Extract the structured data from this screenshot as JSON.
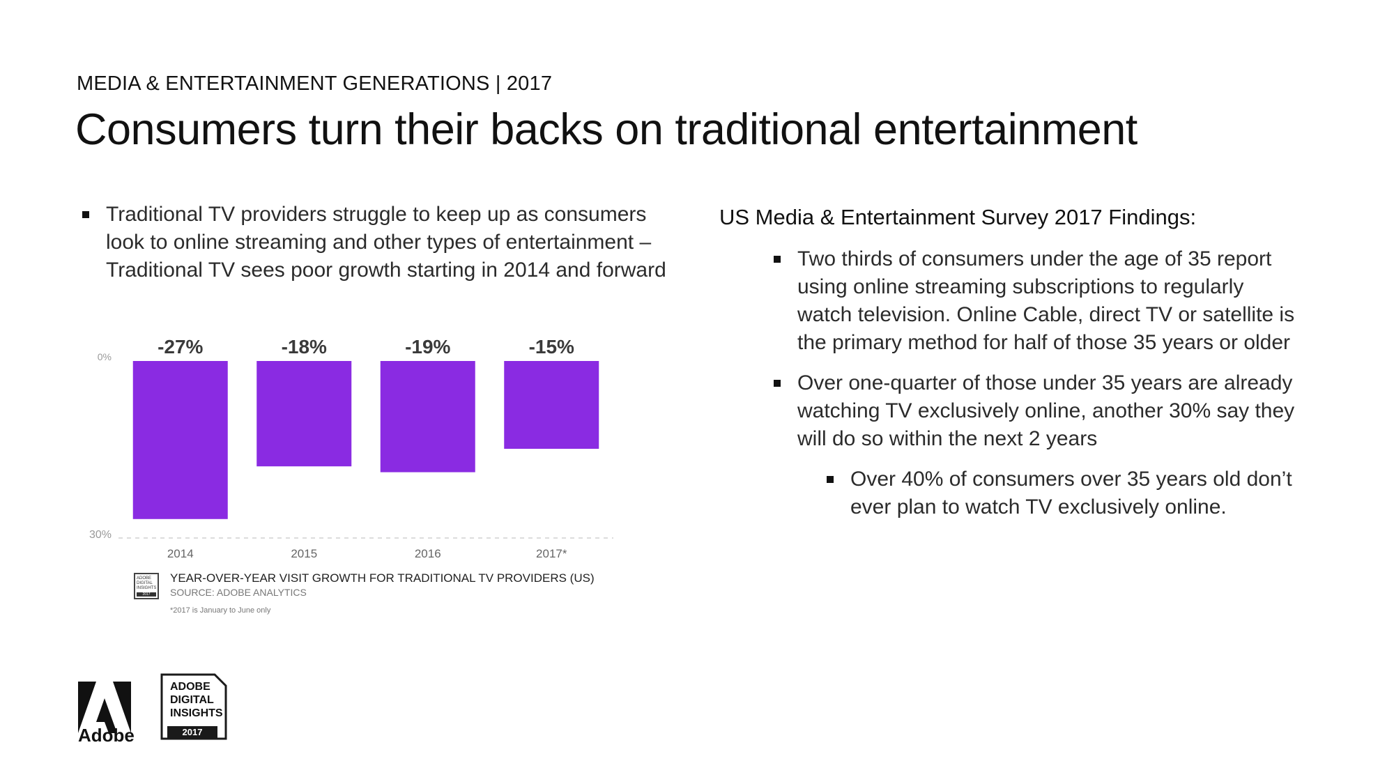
{
  "header": {
    "kicker": "MEDIA & ENTERTAINMENT GENERATIONS | 2017",
    "title": "Consumers turn their backs on traditional entertainment"
  },
  "left": {
    "bullets": [
      "Traditional TV providers struggle to keep up as consumers look to online streaming and other types of entertainment – Traditional TV sees poor growth starting in 2014 and forward"
    ]
  },
  "chart_data": {
    "type": "bar",
    "title": "YEAR-OVER-YEAR VISIT GROWTH FOR TRADITIONAL TV PROVIDERS (US)",
    "source": "SOURCE: ADOBE ANALYTICS",
    "note": "*2017 is January to June only",
    "categories": [
      "2014",
      "2015",
      "2016",
      "2017*"
    ],
    "values": [
      -27,
      -18,
      -19,
      -15
    ],
    "data_labels": [
      "-27%",
      "-18%",
      "-19%",
      "-15%"
    ],
    "y_tick_labels": [
      "0%",
      "30%"
    ],
    "ylim": [
      -30,
      0
    ],
    "bar_color": "#8a2be2",
    "grid": false
  },
  "caption": {
    "badge_lines": [
      "ADOBE",
      "DIGITAL",
      "INSIGHTS"
    ],
    "badge_year": "2017"
  },
  "right": {
    "heading": "US Media & Entertainment Survey 2017 Findings:",
    "bullets": [
      "Two thirds of consumers under the age of 35 report using online streaming subscriptions to regularly watch television. Online Cable, direct TV or satellite is the primary method for half of those 35 years or older",
      "Over one-quarter of those under 35 years are already watching TV exclusively online, another 30% say they will do so within the next 2 years"
    ],
    "sub_bullets": [
      "Over 40% of consumers over 35 years old don’t ever plan to watch TV exclusively online."
    ]
  },
  "footer": {
    "adobe_word": "Adobe",
    "adi_lines": [
      "ADOBE",
      "DIGITAL",
      "INSIGHTS"
    ],
    "adi_year": "2017"
  }
}
